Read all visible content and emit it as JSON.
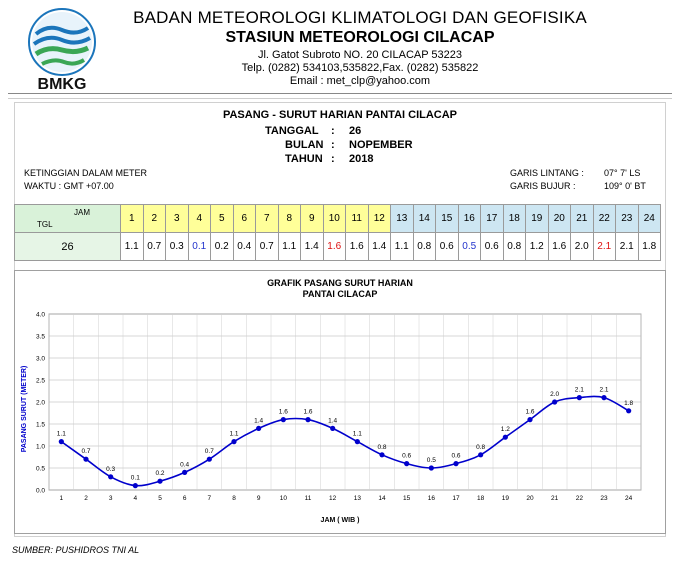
{
  "letterhead": {
    "logo_text": "BMKG",
    "organization": "BADAN METEOROLOGI KLIMATOLOGI DAN GEOFISIKA",
    "station": "STASIUN METEOROLOGI CILACAP",
    "address": "Jl. Gatot Subroto NO. 20 CILACAP 53223",
    "phone": "Telp. (0282) 534103,535822,Fax. (0282) 535822",
    "email": "Email : met_clp@yahoo.com"
  },
  "report": {
    "title": "PASANG - SURUT HARIAN PANTAI CILACAP",
    "date_fields": [
      {
        "label": "TANGGAL",
        "sep": ":",
        "value": "26"
      },
      {
        "label": "BULAN",
        "sep": ":",
        "value": "NOPEMBER"
      },
      {
        "label": "TAHUN",
        "sep": ":",
        "value": "2018"
      }
    ],
    "unit_note": "KETINGGIAN DALAM METER",
    "time_note": "WAKTU : GMT +07.00",
    "latitude_label": "GARIS LINTANG :",
    "latitude_value": "07° 7' LS",
    "longitude_label": "GARIS BUJUR :",
    "longitude_value": "109° 0' BT"
  },
  "table": {
    "jam_label": "JAM",
    "tgl_label": "TGL",
    "day": "26",
    "hours": [
      "1",
      "2",
      "3",
      "4",
      "5",
      "6",
      "7",
      "8",
      "9",
      "10",
      "11",
      "12",
      "13",
      "14",
      "15",
      "16",
      "17",
      "18",
      "19",
      "20",
      "21",
      "22",
      "23",
      "24"
    ],
    "values": [
      "1.1",
      "0.7",
      "0.3",
      "0.1",
      "0.2",
      "0.4",
      "0.7",
      "1.1",
      "1.4",
      "1.6",
      "1.6",
      "1.4",
      "1.1",
      "0.8",
      "0.6",
      "0.5",
      "0.6",
      "0.8",
      "1.2",
      "1.6",
      "2.0",
      "2.1",
      "2.1",
      "1.8"
    ],
    "colors": {
      "am_header": "#ffff99",
      "pm_header": "#cde6f2",
      "low_value": "#2233cc",
      "high_value": "#dd1111"
    }
  },
  "chart_data": {
    "type": "line",
    "title": "GRAFIK PASANG SURUT HARIAN",
    "subtitle": "PANTAI CILACAP",
    "xlabel": "JAM ( WIB )",
    "ylabel": "PASANG  SURUT (METER)",
    "x": [
      1,
      2,
      3,
      4,
      5,
      6,
      7,
      8,
      9,
      10,
      11,
      12,
      13,
      14,
      15,
      16,
      17,
      18,
      19,
      20,
      21,
      22,
      23,
      24
    ],
    "series": [
      {
        "name": "Pasang Surut",
        "values": [
          1.1,
          0.7,
          0.3,
          0.1,
          0.2,
          0.4,
          0.7,
          1.1,
          1.4,
          1.6,
          1.6,
          1.4,
          1.1,
          0.8,
          0.6,
          0.5,
          0.6,
          0.8,
          1.2,
          1.6,
          2.0,
          2.1,
          2.1,
          1.8
        ]
      }
    ],
    "point_labels": [
      "1.1",
      "0.7",
      "0.3",
      "0.1",
      "0.2",
      "0.4",
      "0.7",
      "1.1",
      "1.4",
      "1.6",
      "1.6",
      "1.4",
      "1.1",
      "0.8",
      "0.6",
      "0.5",
      "0.6",
      "0.8",
      "1.2",
      "1.6",
      "2.0",
      "2.1",
      "2.1",
      "1.8"
    ],
    "ylim": [
      0,
      4.0
    ],
    "yticks": [
      "0.0",
      "0.5",
      "1.0",
      "1.5",
      "2.0",
      "2.5",
      "3.0",
      "3.5",
      "4.0"
    ],
    "xticks": [
      "1",
      "2",
      "3",
      "4",
      "5",
      "6",
      "7",
      "8",
      "9",
      "10",
      "11",
      "12",
      "13",
      "14",
      "15",
      "16",
      "17",
      "18",
      "19",
      "20",
      "21",
      "22",
      "23",
      "24"
    ],
    "grid": true,
    "line_color": "#0000cc",
    "marker_color": "#0000cc"
  },
  "footer": {
    "source": "SUMBER: PUSHIDROS TNI AL"
  }
}
